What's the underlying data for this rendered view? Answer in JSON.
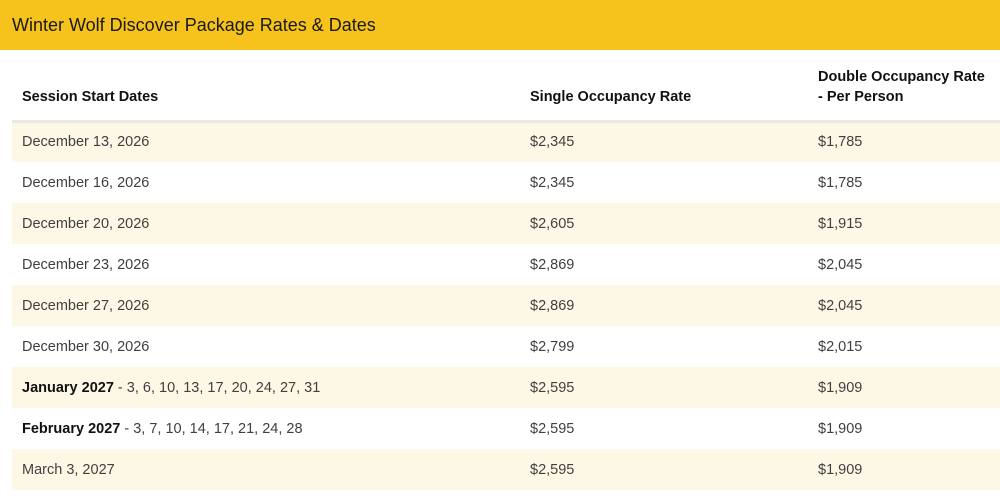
{
  "title": "Winter Wolf Discover Package Rates & Dates",
  "headers": {
    "session": "Session Start Dates",
    "single": "Single Occupancy Rate",
    "double": "Double Occupancy Rate - Per Person"
  },
  "rows": [
    {
      "date": "December 13, 2026",
      "single": "$2,345",
      "double": "$1,785"
    },
    {
      "date": "December 16, 2026",
      "single": "$2,345",
      "double": "$1,785"
    },
    {
      "date": "December 20, 2026",
      "single": "$2,605",
      "double": "$1,915"
    },
    {
      "date": "December 23, 2026",
      "single": "$2,869",
      "double": "$2,045"
    },
    {
      "date": "December 27, 2026",
      "single": "$2,869",
      "double": "$2,045"
    },
    {
      "date": "December 30, 2026",
      "single": "$2,799",
      "double": "$2,015"
    },
    {
      "month": "January 2027",
      "days": " - 3, 6, 10, 13, 17, 20, 24, 27, 31",
      "single": "$2,595",
      "double": "$1,909"
    },
    {
      "month": "February 2027",
      "days": " - 3, 7, 10, 14, 17, 21, 24, 28",
      "single": "$2,595",
      "double": "$1,909"
    },
    {
      "date": "March 3, 2027",
      "single": "$2,595",
      "double": "$1,909"
    }
  ],
  "colors": {
    "banner": "#f6c21c",
    "stripe": "#fdf8e6"
  }
}
